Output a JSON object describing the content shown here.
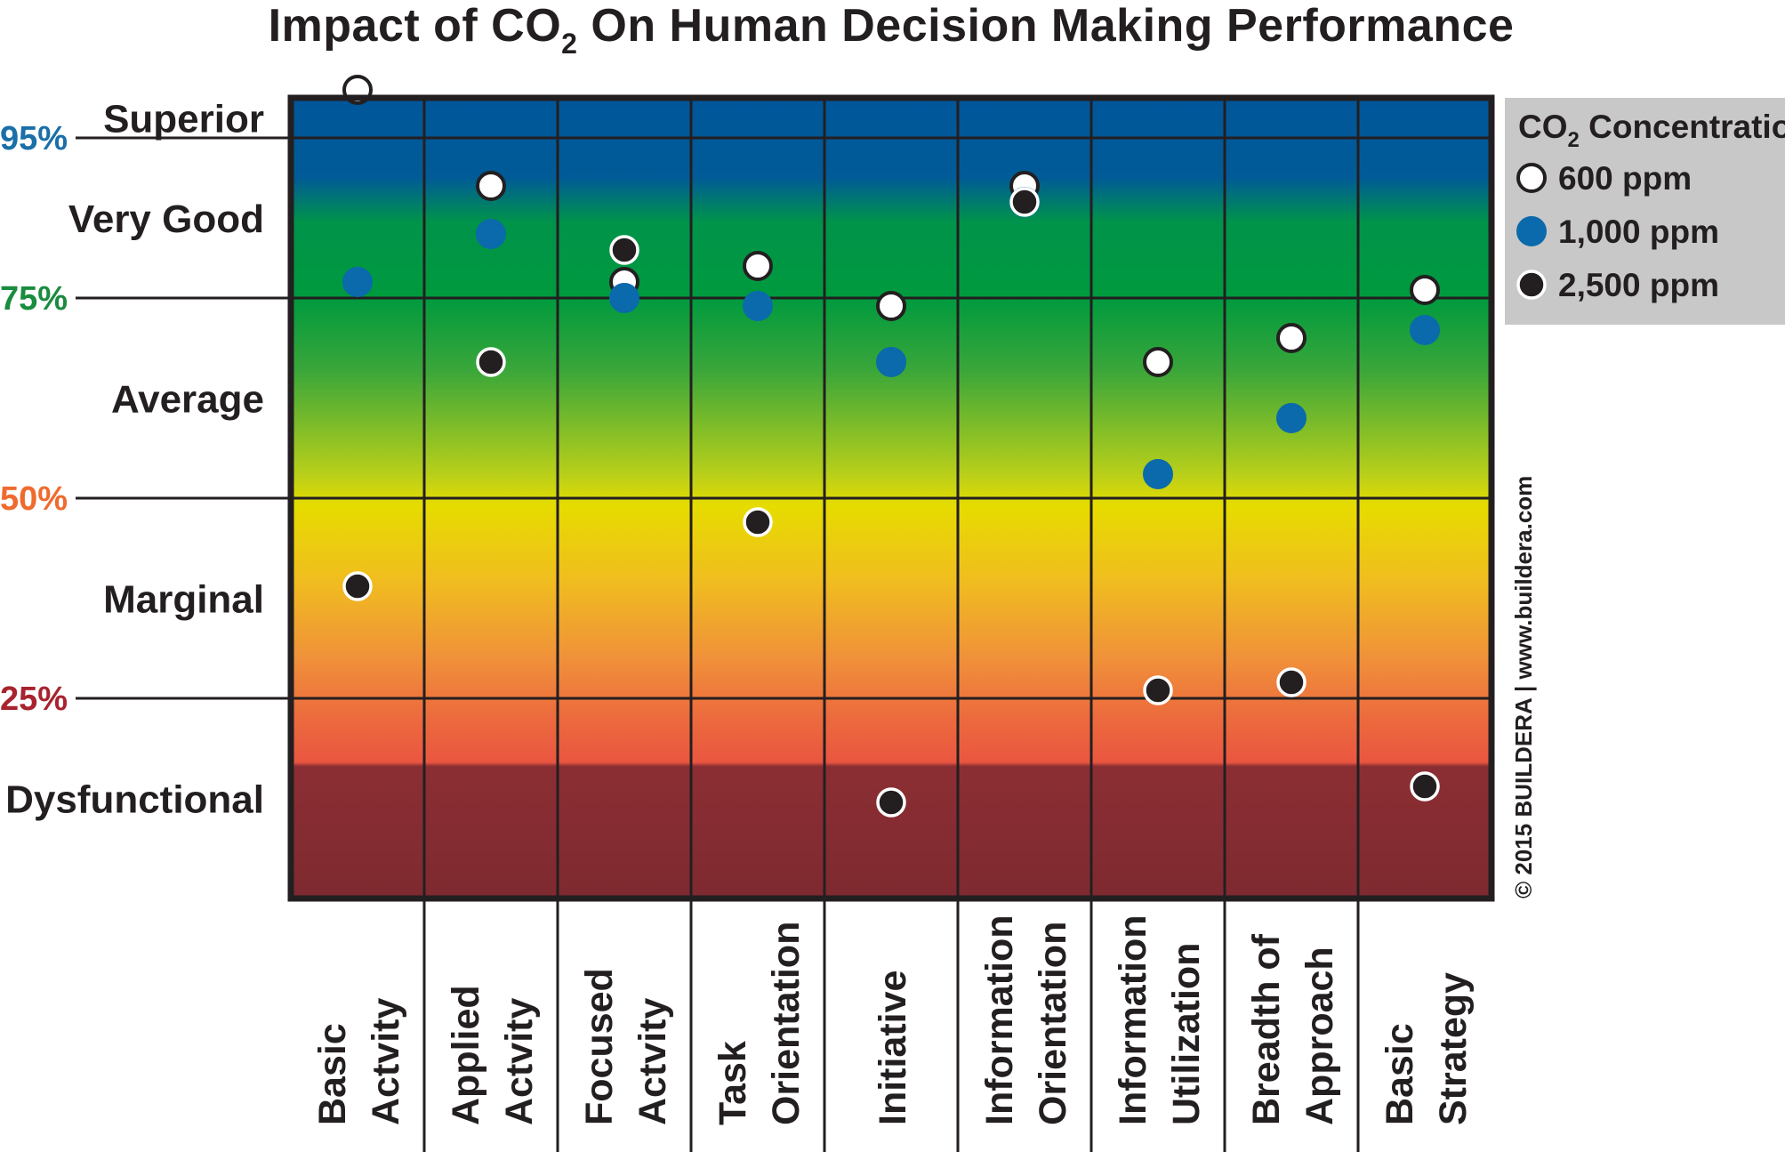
{
  "chart_data": {
    "type": "scatter",
    "title": "Impact of CO2 On Human Decision Making Performance",
    "title_parts": {
      "pre": "Impact of CO",
      "sub": "2",
      "post": " On Human Decision Making Performance"
    },
    "categories": [
      [
        "Basic",
        "Actvity"
      ],
      [
        "Applied",
        "Actvity"
      ],
      [
        "Focused",
        "Actvity"
      ],
      [
        "Task",
        "Orientation"
      ],
      [
        "Initiative"
      ],
      [
        "Information",
        "Orientation"
      ],
      [
        "Information",
        "Utilization"
      ],
      [
        "Breadth of",
        "Approach"
      ],
      [
        "Basic",
        "Strategy"
      ]
    ],
    "ylim": [
      0,
      100
    ],
    "thresholds": [
      {
        "label": "95%",
        "value": 95,
        "color": "#1a6fa8"
      },
      {
        "label": "75%",
        "value": 75,
        "color": "#1a8c3e"
      },
      {
        "label": "50%",
        "value": 50,
        "color": "#ef6a2e"
      },
      {
        "label": "25%",
        "value": 25,
        "color": "#a8232e"
      }
    ],
    "bands": [
      {
        "label": "Superior",
        "value": 97.5
      },
      {
        "label": "Very Good",
        "value": 85
      },
      {
        "label": "Average",
        "value": 62.5
      },
      {
        "label": "Marginal",
        "value": 37.5
      },
      {
        "label": "Dysfunctional",
        "value": 12.5
      }
    ],
    "series": [
      {
        "name": "600 ppm",
        "fill": "#ffffff",
        "stroke": "#231f20",
        "values": [
          101,
          89,
          77,
          79,
          74,
          89,
          67,
          70,
          76
        ]
      },
      {
        "name": "1,000 ppm",
        "fill": "#0a6aab",
        "stroke": "#0a6aab",
        "values": [
          77,
          83,
          75,
          74,
          67,
          87,
          53,
          60,
          71
        ]
      },
      {
        "name": "2,500 ppm",
        "fill": "#231f20",
        "stroke": "#ffffff",
        "values": [
          39,
          67,
          81,
          47,
          12,
          87,
          26,
          27,
          14
        ]
      }
    ],
    "legend": {
      "title_pre": "CO",
      "title_sub": "2",
      "title_post": " Concentration",
      "position": "top-right"
    },
    "credit": "© 2015 BUILDERA | www.buildera.com"
  }
}
